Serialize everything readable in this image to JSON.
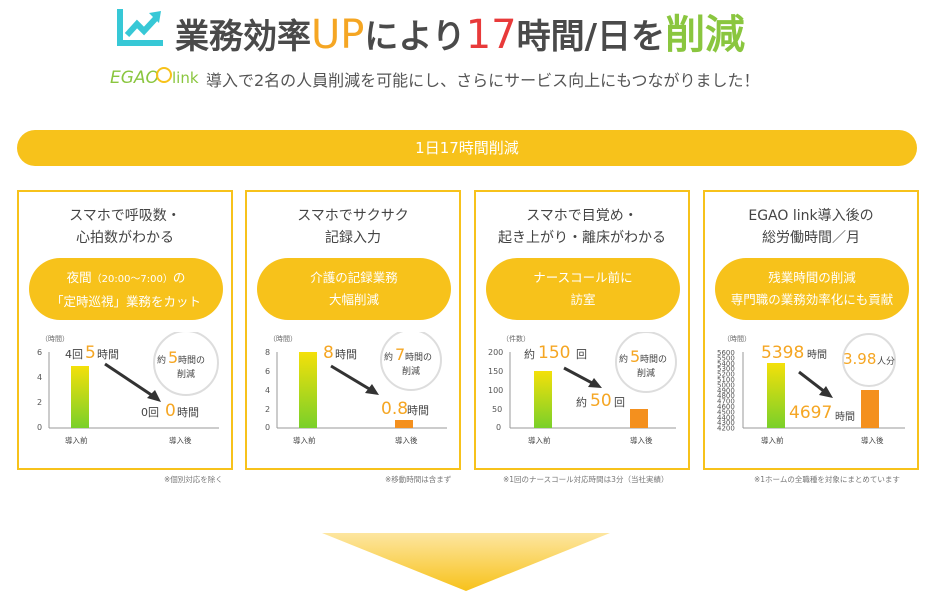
{
  "header": {
    "title_part1": "業務効率",
    "title_up": "UP",
    "title_part2": "により",
    "title_hours": "17",
    "title_part3": "時間/日を",
    "title_cut": "削減",
    "icon": "trending-up-chart-icon",
    "logo_text": "EGAO link",
    "subtitle": "導入で2名の人員削減を可能にし、さらにサービス向上にもつながりました！"
  },
  "banner": {
    "label": "1日17時間削減"
  },
  "colors": {
    "accent_yellow": "#f7c21b",
    "title_orange": "#f5a623",
    "title_red": "#e83a3a",
    "title_green": "#8ac63f",
    "bar_before_top": "#f4e00a",
    "bar_before_bottom": "#79d02a",
    "bar_after": "#f4901e",
    "cyan_icon": "#37c8d6"
  },
  "cards": [
    {
      "title_line1": "スマホで呼吸数・",
      "title_line2": "心拍数がわかる",
      "pill_line1_a": "夜間",
      "pill_line1_small": "（20:00〜7:00）",
      "pill_line1_b": "の",
      "pill_line2": "「定時巡視」業務をカット",
      "y_unit": "（時間）",
      "y_ticks": [
        "6",
        "4",
        "2",
        "0"
      ],
      "before_prefix": "4回",
      "before_value": "5",
      "before_unit": "時間",
      "after_prefix": "0回",
      "after_value": "0",
      "after_unit": "時間",
      "badge_prefix": "約",
      "badge_value": "5",
      "badge_unit": "時間の",
      "badge_line2": "削減",
      "x_before": "導入前",
      "x_after": "導入後",
      "note": "※個別対応を除く"
    },
    {
      "title_line1": "スマホでサクサク",
      "title_line2": "記録入力",
      "pill_line1": "介護の記録業務",
      "pill_line2": "大幅削減",
      "y_unit": "（時間）",
      "y_ticks": [
        "8",
        "6",
        "4",
        "2",
        "0"
      ],
      "before_value": "8",
      "before_unit": "時間",
      "after_value": "0.8",
      "after_unit": "時間",
      "badge_prefix": "約",
      "badge_value": "7",
      "badge_unit": "時間の",
      "badge_line2": "削減",
      "x_before": "導入前",
      "x_after": "導入後",
      "note": "※移動時間は含まず"
    },
    {
      "title_line1": "スマホで目覚め・",
      "title_line2": "起き上がり・離床がわかる",
      "pill_line1": "ナースコール前に",
      "pill_line2": "訪室",
      "y_unit": "（件数）",
      "y_ticks": [
        "200",
        "150",
        "100",
        "50",
        "0"
      ],
      "before_prefix": "約",
      "before_value": "150",
      "before_unit": "回",
      "after_prefix": "約",
      "after_value": "50",
      "after_unit": "回",
      "badge_prefix": "約",
      "badge_value": "5",
      "badge_unit": "時間の",
      "badge_line2": "削減",
      "x_before": "導入前",
      "x_after": "導入後",
      "note": "※1回のナースコール対応時間は3分（当社実績）"
    },
    {
      "title_line1": "EGAO link導入後の",
      "title_line2": "総労働時間／月",
      "pill_line1": "残業時間の削減",
      "pill_line2": "専門職の業務効率化にも貢献",
      "y_unit": "（時間）",
      "y_ticks": [
        "5600",
        "5500",
        "5400",
        "5300",
        "5200",
        "5100",
        "5000",
        "4900",
        "4800",
        "4700",
        "4600",
        "4500",
        "4400",
        "4300",
        "4200"
      ],
      "before_value": "5398",
      "before_unit": "時間",
      "after_value": "4697",
      "after_unit": "時間",
      "badge_value": "3.98",
      "badge_unit": "人分",
      "x_before": "導入前",
      "x_after": "導入後",
      "note": "※1ホームの全職種を対象にまとめています"
    }
  ],
  "chart_data": [
    {
      "type": "bar",
      "categories": [
        "導入前",
        "導入後"
      ],
      "values": [
        5,
        0
      ],
      "ylabel": "（時間）",
      "ylim": [
        0,
        6
      ]
    },
    {
      "type": "bar",
      "categories": [
        "導入前",
        "導入後"
      ],
      "values": [
        8,
        0.8
      ],
      "ylabel": "（時間）",
      "ylim": [
        0,
        8
      ]
    },
    {
      "type": "bar",
      "categories": [
        "導入前",
        "導入後"
      ],
      "values": [
        150,
        50
      ],
      "ylabel": "（件数）",
      "ylim": [
        0,
        200
      ]
    },
    {
      "type": "bar",
      "categories": [
        "導入前",
        "導入後"
      ],
      "values": [
        5398,
        4697
      ],
      "ylabel": "（時間）",
      "ylim": [
        4200,
        5600
      ]
    }
  ]
}
